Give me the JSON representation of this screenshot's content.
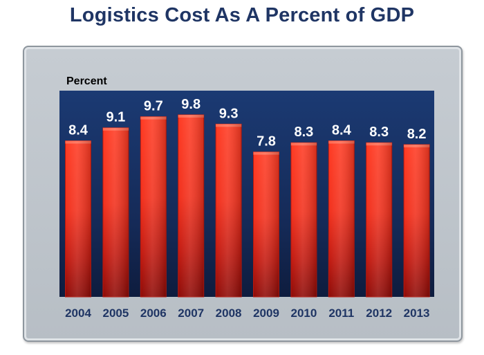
{
  "chart_data": {
    "type": "bar",
    "title": "Logistics Cost As A Percent of GDP",
    "ylabel": "Percent",
    "xlabel": "",
    "categories": [
      "2004",
      "2005",
      "2006",
      "2007",
      "2008",
      "2009",
      "2010",
      "2011",
      "2012",
      "2013"
    ],
    "values": [
      8.4,
      9.1,
      9.7,
      9.8,
      9.3,
      7.8,
      8.3,
      8.4,
      8.3,
      8.2
    ],
    "data_labels": [
      "8.4",
      "9.1",
      "9.7",
      "9.8",
      "9.3",
      "7.8",
      "8.3",
      "8.4",
      "8.3",
      "8.2"
    ],
    "ylim": [
      0,
      11.1
    ],
    "grid": false,
    "legend": "none",
    "colors": {
      "bar": "#ff3a22",
      "bar_dark": "#8e0a06",
      "plot_background": "#1b3a73",
      "title": "#1f3564",
      "tick_labels": "#1f3564",
      "data_labels": "#ffffff"
    }
  }
}
